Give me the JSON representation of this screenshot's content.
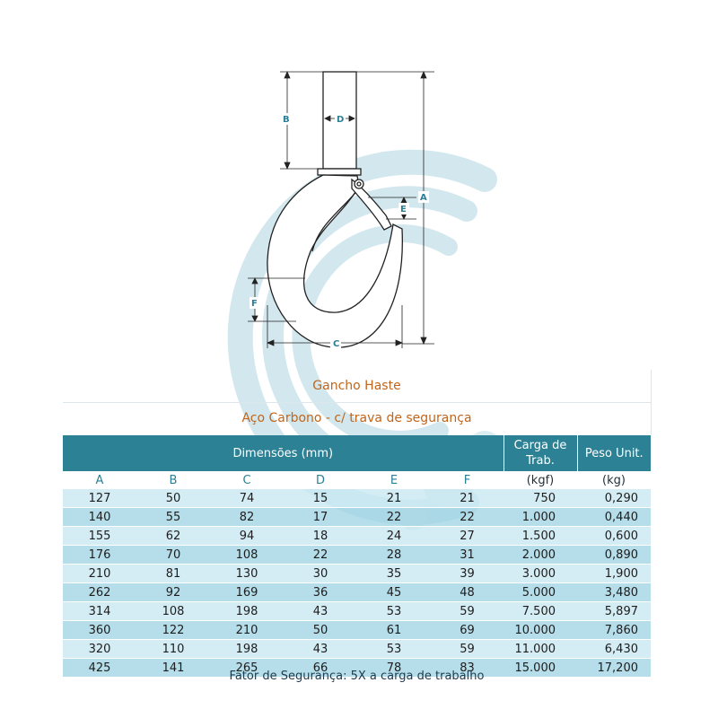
{
  "drawing": {
    "dimension_labels": [
      "A",
      "B",
      "C",
      "D",
      "E",
      "F"
    ]
  },
  "title": "Gancho Haste",
  "subtitle": "Aço Carbono - c/ trava de segurança",
  "table": {
    "group_header": "Dimensões (mm)",
    "load_header": "Carga de Trab.",
    "weight_header": "Peso Unit.",
    "columns": [
      "A",
      "B",
      "C",
      "D",
      "E",
      "F"
    ],
    "load_unit": "(kgf)",
    "weight_unit": "(kg)",
    "rows": [
      [
        "127",
        "50",
        "74",
        "15",
        "21",
        "21",
        "750",
        "0,290"
      ],
      [
        "140",
        "55",
        "82",
        "17",
        "22",
        "22",
        "1.000",
        "0,440"
      ],
      [
        "155",
        "62",
        "94",
        "18",
        "24",
        "27",
        "1.500",
        "0,600"
      ],
      [
        "176",
        "70",
        "108",
        "22",
        "28",
        "31",
        "2.000",
        "0,890"
      ],
      [
        "210",
        "81",
        "130",
        "30",
        "35",
        "39",
        "3.000",
        "1,900"
      ],
      [
        "262",
        "92",
        "169",
        "36",
        "45",
        "48",
        "5.000",
        "3,480"
      ],
      [
        "314",
        "108",
        "198",
        "43",
        "53",
        "59",
        "7.500",
        "5,897"
      ],
      [
        "360",
        "122",
        "210",
        "50",
        "61",
        "69",
        "10.000",
        "7,860"
      ],
      [
        "320",
        "110",
        "198",
        "43",
        "53",
        "59",
        "11.000",
        "6,430"
      ],
      [
        "425",
        "141",
        "265",
        "66",
        "78",
        "83",
        "15.000",
        "17,200"
      ]
    ]
  },
  "footer": "Fator de Segurança: 5X a carga de trabalho",
  "colors": {
    "header_bg": "#2d8195",
    "title_color": "#c0651b",
    "watermark": "#cfe6ec"
  }
}
